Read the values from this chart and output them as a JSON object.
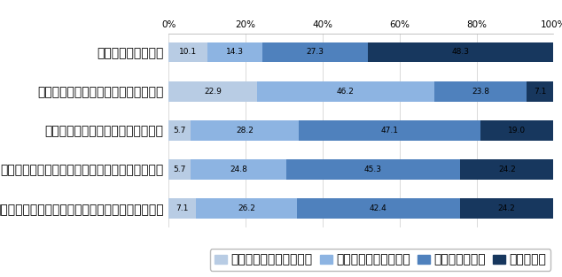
{
  "categories": [
    "自炊を心がけている",
    "有機栅培食品を前べるようにしている",
    "肉より野菜を前べるようにしている",
    "冷凍食品より新鮮な食品を前べるようにしている",
    "輸入食材よりも地元の食材を前べるようにしている"
  ],
  "series": {
    "s1": [
      10.1,
      22.9,
      5.7,
      5.7,
      7.1
    ],
    "s2": [
      14.3,
      46.2,
      28.2,
      24.8,
      26.2
    ],
    "s3": [
      27.3,
      23.8,
      47.1,
      45.3,
      42.4
    ],
    "s4": [
      48.3,
      7.1,
      19.0,
      24.2,
      24.2
    ]
  },
  "legend_labels": [
    "まったく当てはまらない",
    "あまり当てはまらない",
    "やや当てはまる",
    "当てはまる"
  ],
  "colors": [
    "#b8cce4",
    "#8db4e2",
    "#4f81bd",
    "#17375e"
  ],
  "xlim": [
    0,
    100
  ],
  "xticks": [
    0,
    20,
    40,
    60,
    80,
    100
  ],
  "xticklabels": [
    "0%",
    "20%",
    "40%",
    "60%",
    "80%",
    "100%"
  ],
  "bar_height": 0.52,
  "fontsize_label": 7.0,
  "fontsize_tick": 7.5,
  "fontsize_bar": 6.5,
  "fontsize_legend": 7.0,
  "background_color": "#ffffff"
}
